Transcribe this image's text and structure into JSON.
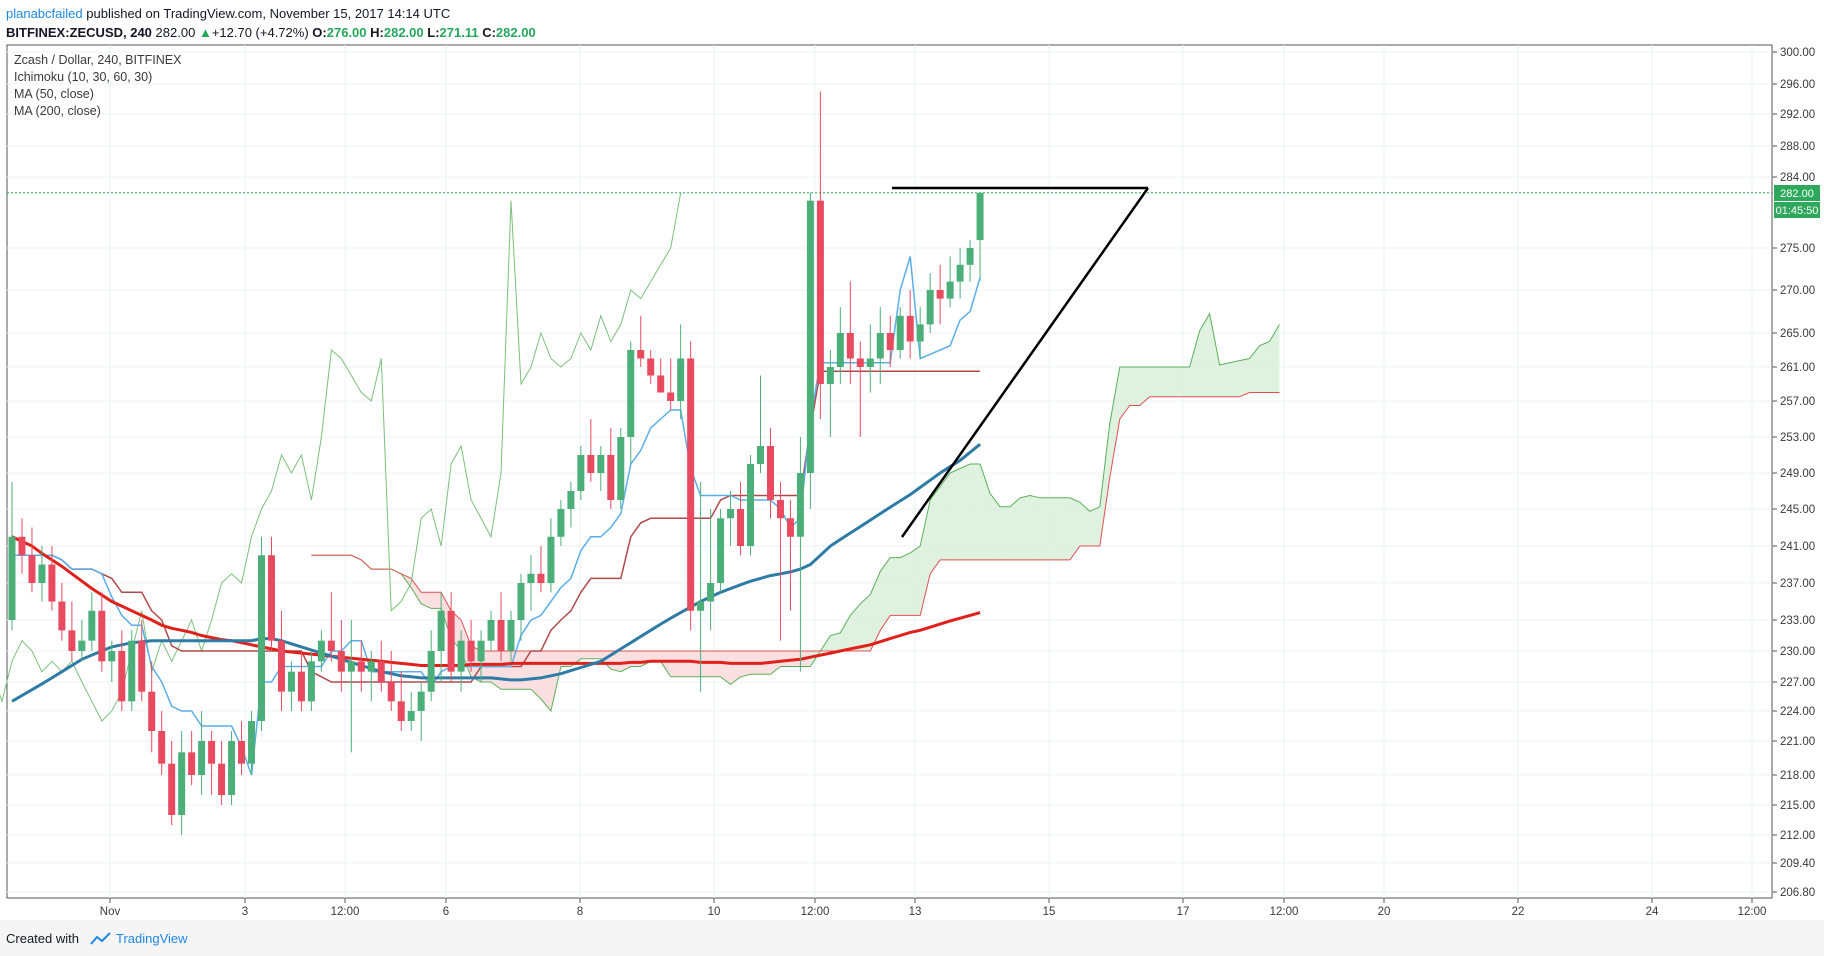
{
  "header": {
    "author": "planabcfailed",
    "published_text": "published on TradingView.com, November 15, 2017 14:14 UTC",
    "symbol_line": "BITFINEX:ZECUSD, 240",
    "last": "282.00",
    "change": "+12.70 (+4.72%)",
    "o_label": "O:",
    "o": "276.00",
    "h_label": "H:",
    "h": "282.00",
    "l_label": "L:",
    "l": "271.11",
    "c_label": "C:",
    "c": "282.00"
  },
  "legend": {
    "title": "Zcash / Dollar, 240, BITFINEX",
    "ichimoku": "Ichimoku (10, 30, 60, 30)",
    "ma50": "MA (50, close)",
    "ma200": "MA (200, close)"
  },
  "price_tag": {
    "price": "282.00",
    "countdown": "01:45:50"
  },
  "footer": {
    "created_with": "Created with",
    "brand": "TradingView"
  },
  "colors": {
    "up": "#4caf7a",
    "down": "#e84a5f",
    "ma50": "#2e7ba6",
    "ma200": "#e0201b",
    "tenkan": "#5aaee8",
    "kijun": "#b04a4a",
    "chikou": "#7cc07c",
    "cloud_bull": "#d9efd9",
    "cloud_bear": "#fbd9dc"
  },
  "chart_data": {
    "type": "candlestick",
    "title": "Zcash / Dollar, 240, BITFINEX",
    "x_tick_labels": [
      "Nov",
      "3",
      "12:00",
      "6",
      "8",
      "10",
      "12:00",
      "13",
      "15",
      "17",
      "12:00",
      "20",
      "22",
      "24",
      "12:00"
    ],
    "y_tick_labels": [
      "300.00",
      "296.00",
      "292.00",
      "288.00",
      "284.00",
      "275.00",
      "270.00",
      "265.00",
      "261.00",
      "257.00",
      "253.00",
      "249.00",
      "245.00",
      "241.00",
      "237.00",
      "233.00",
      "230.00",
      "227.00",
      "224.00",
      "221.00",
      "218.00",
      "215.00",
      "212.00",
      "209.40",
      "206.80"
    ],
    "last_price": 282.0,
    "candles": [
      {
        "o": 233,
        "h": 248,
        "l": 232,
        "c": 242
      },
      {
        "o": 242,
        "h": 244,
        "l": 238,
        "c": 240
      },
      {
        "o": 240,
        "h": 243,
        "l": 236,
        "c": 237
      },
      {
        "o": 237,
        "h": 241,
        "l": 235,
        "c": 239
      },
      {
        "o": 239,
        "h": 241,
        "l": 234,
        "c": 235
      },
      {
        "o": 235,
        "h": 237,
        "l": 231,
        "c": 232
      },
      {
        "o": 232,
        "h": 235,
        "l": 229,
        "c": 230
      },
      {
        "o": 230,
        "h": 233,
        "l": 229,
        "c": 231
      },
      {
        "o": 231,
        "h": 236,
        "l": 230,
        "c": 234
      },
      {
        "o": 234,
        "h": 236,
        "l": 228,
        "c": 229
      },
      {
        "o": 229,
        "h": 231,
        "l": 227,
        "c": 230
      },
      {
        "o": 230,
        "h": 232,
        "l": 224,
        "c": 225
      },
      {
        "o": 225,
        "h": 232,
        "l": 224,
        "c": 231
      },
      {
        "o": 231,
        "h": 233,
        "l": 225,
        "c": 226
      },
      {
        "o": 226,
        "h": 229,
        "l": 220,
        "c": 222
      },
      {
        "o": 222,
        "h": 224,
        "l": 218,
        "c": 219
      },
      {
        "o": 219,
        "h": 221,
        "l": 213,
        "c": 214
      },
      {
        "o": 214,
        "h": 222,
        "l": 212,
        "c": 220
      },
      {
        "o": 220,
        "h": 222,
        "l": 217,
        "c": 218
      },
      {
        "o": 218,
        "h": 224,
        "l": 216,
        "c": 221
      },
      {
        "o": 221,
        "h": 222,
        "l": 216,
        "c": 219
      },
      {
        "o": 219,
        "h": 221,
        "l": 215,
        "c": 216
      },
      {
        "o": 216,
        "h": 222,
        "l": 215,
        "c": 221
      },
      {
        "o": 221,
        "h": 223,
        "l": 218,
        "c": 219
      },
      {
        "o": 219,
        "h": 224,
        "l": 218,
        "c": 223
      },
      {
        "o": 223,
        "h": 242,
        "l": 222,
        "c": 240
      },
      {
        "o": 240,
        "h": 242,
        "l": 230,
        "c": 231
      },
      {
        "o": 231,
        "h": 234,
        "l": 224,
        "c": 226
      },
      {
        "o": 226,
        "h": 229,
        "l": 224,
        "c": 228
      },
      {
        "o": 228,
        "h": 230,
        "l": 224,
        "c": 225
      },
      {
        "o": 225,
        "h": 230,
        "l": 224,
        "c": 229
      },
      {
        "o": 229,
        "h": 232,
        "l": 228,
        "c": 231
      },
      {
        "o": 231,
        "h": 236,
        "l": 229,
        "c": 230
      },
      {
        "o": 230,
        "h": 233,
        "l": 226,
        "c": 228
      },
      {
        "o": 228,
        "h": 233,
        "l": 220,
        "c": 229
      },
      {
        "o": 229,
        "h": 231,
        "l": 226,
        "c": 228
      },
      {
        "o": 228,
        "h": 230,
        "l": 225,
        "c": 229
      },
      {
        "o": 229,
        "h": 231,
        "l": 226,
        "c": 227
      },
      {
        "o": 227,
        "h": 230,
        "l": 224,
        "c": 225
      },
      {
        "o": 225,
        "h": 228,
        "l": 222,
        "c": 223
      },
      {
        "o": 223,
        "h": 226,
        "l": 222,
        "c": 224
      },
      {
        "o": 224,
        "h": 227,
        "l": 221,
        "c": 226
      },
      {
        "o": 226,
        "h": 232,
        "l": 225,
        "c": 230
      },
      {
        "o": 230,
        "h": 236,
        "l": 227,
        "c": 234
      },
      {
        "o": 234,
        "h": 236,
        "l": 227,
        "c": 228
      },
      {
        "o": 228,
        "h": 232,
        "l": 226,
        "c": 231
      },
      {
        "o": 231,
        "h": 233,
        "l": 228,
        "c": 229
      },
      {
        "o": 229,
        "h": 232,
        "l": 227,
        "c": 231
      },
      {
        "o": 231,
        "h": 234,
        "l": 230,
        "c": 233
      },
      {
        "o": 233,
        "h": 236,
        "l": 229,
        "c": 230
      },
      {
        "o": 230,
        "h": 234,
        "l": 229,
        "c": 233
      },
      {
        "o": 233,
        "h": 238,
        "l": 231,
        "c": 237
      },
      {
        "o": 237,
        "h": 240,
        "l": 234,
        "c": 238
      },
      {
        "o": 238,
        "h": 241,
        "l": 236,
        "c": 237
      },
      {
        "o": 237,
        "h": 244,
        "l": 236,
        "c": 242
      },
      {
        "o": 242,
        "h": 246,
        "l": 241,
        "c": 245
      },
      {
        "o": 245,
        "h": 248,
        "l": 243,
        "c": 247
      },
      {
        "o": 247,
        "h": 252,
        "l": 246,
        "c": 251
      },
      {
        "o": 251,
        "h": 255,
        "l": 248,
        "c": 249
      },
      {
        "o": 249,
        "h": 252,
        "l": 247,
        "c": 251
      },
      {
        "o": 251,
        "h": 254,
        "l": 245,
        "c": 246
      },
      {
        "o": 246,
        "h": 254,
        "l": 245,
        "c": 253
      },
      {
        "o": 253,
        "h": 264,
        "l": 250,
        "c": 263
      },
      {
        "o": 263,
        "h": 267,
        "l": 261,
        "c": 262
      },
      {
        "o": 262,
        "h": 263,
        "l": 259,
        "c": 260
      },
      {
        "o": 260,
        "h": 262,
        "l": 258,
        "c": 258
      },
      {
        "o": 258,
        "h": 262,
        "l": 256,
        "c": 257
      },
      {
        "o": 257,
        "h": 266,
        "l": 255,
        "c": 262
      },
      {
        "o": 262,
        "h": 264,
        "l": 232,
        "c": 234
      },
      {
        "o": 234,
        "h": 248,
        "l": 226,
        "c": 235
      },
      {
        "o": 235,
        "h": 245,
        "l": 232,
        "c": 237
      },
      {
        "o": 237,
        "h": 245,
        "l": 236,
        "c": 244
      },
      {
        "o": 244,
        "h": 247,
        "l": 241,
        "c": 245
      },
      {
        "o": 245,
        "h": 248,
        "l": 240,
        "c": 241
      },
      {
        "o": 241,
        "h": 251,
        "l": 240,
        "c": 250
      },
      {
        "o": 250,
        "h": 260,
        "l": 249,
        "c": 252
      },
      {
        "o": 252,
        "h": 254,
        "l": 244,
        "c": 246
      },
      {
        "o": 246,
        "h": 248,
        "l": 231,
        "c": 244
      },
      {
        "o": 244,
        "h": 246,
        "l": 234,
        "c": 242
      },
      {
        "o": 242,
        "h": 253,
        "l": 228,
        "c": 249
      },
      {
        "o": 249,
        "h": 282,
        "l": 245,
        "c": 281
      },
      {
        "o": 281,
        "h": 295,
        "l": 255,
        "c": 259
      },
      {
        "o": 259,
        "h": 263,
        "l": 253,
        "c": 261
      },
      {
        "o": 261,
        "h": 268,
        "l": 259,
        "c": 265
      },
      {
        "o": 265,
        "h": 271,
        "l": 259,
        "c": 262
      },
      {
        "o": 262,
        "h": 264,
        "l": 253,
        "c": 261
      },
      {
        "o": 261,
        "h": 266,
        "l": 258,
        "c": 262
      },
      {
        "o": 262,
        "h": 268,
        "l": 259,
        "c": 265
      },
      {
        "o": 265,
        "h": 267,
        "l": 261,
        "c": 263
      },
      {
        "o": 263,
        "h": 268,
        "l": 262,
        "c": 267
      },
      {
        "o": 267,
        "h": 270,
        "l": 262,
        "c": 264
      },
      {
        "o": 264,
        "h": 268,
        "l": 262,
        "c": 266
      },
      {
        "o": 266,
        "h": 272,
        "l": 265,
        "c": 270
      },
      {
        "o": 270,
        "h": 273,
        "l": 266,
        "c": 269
      },
      {
        "o": 269,
        "h": 274,
        "l": 268,
        "c": 271
      },
      {
        "o": 271,
        "h": 275,
        "l": 269,
        "c": 273
      },
      {
        "o": 273,
        "h": 276,
        "l": 271,
        "c": 275
      },
      {
        "o": 276,
        "h": 282,
        "l": 271.11,
        "c": 282
      }
    ],
    "ma200": [
      242,
      241.5,
      241,
      240.2,
      239.5,
      238.8,
      238,
      237.2,
      236.4,
      235.7,
      235,
      234.5,
      234,
      233.5,
      233,
      232.5,
      232.2,
      232,
      231.8,
      231.5,
      231.3,
      231.1,
      231,
      230.8,
      230.6,
      230.4,
      230.2,
      230,
      229.9,
      229.8,
      229.7,
      229.6,
      229.5,
      229.4,
      229.3,
      229.2,
      229.1,
      229,
      228.9,
      228.8,
      228.7,
      228.6,
      228.6,
      228.6,
      228.6,
      228.6,
      228.7,
      228.7,
      228.7,
      228.7,
      228.8,
      228.8,
      228.8,
      228.8,
      228.8,
      228.8,
      228.8,
      228.8,
      228.8,
      228.8,
      228.8,
      228.8,
      228.9,
      228.9,
      229,
      229,
      229,
      229,
      229,
      228.9,
      228.9,
      228.9,
      228.8,
      228.8,
      228.8,
      228.8,
      228.9,
      229,
      229.1,
      229.2,
      229.4,
      229.6,
      229.8,
      230,
      230.2,
      230.4,
      230.6,
      230.9,
      231.2,
      231.5,
      231.8,
      232,
      232.3,
      232.6,
      232.9,
      233.2,
      233.5,
      233.8
    ],
    "ma50": [
      225,
      225.6,
      226.2,
      226.8,
      227.4,
      228,
      228.6,
      229.2,
      229.6,
      230,
      230.4,
      230.6,
      230.8,
      230.9,
      231,
      231,
      231,
      231,
      231,
      231,
      231,
      231,
      231,
      231,
      231,
      231.2,
      231.2,
      231,
      230.7,
      230.4,
      230.1,
      229.8,
      229.5,
      229.2,
      228.9,
      228.6,
      228.3,
      228,
      227.8,
      227.6,
      227.5,
      227.4,
      227.4,
      227.4,
      227.4,
      227.4,
      227.4,
      227.4,
      227.4,
      227.3,
      227.2,
      227.2,
      227.3,
      227.4,
      227.6,
      227.8,
      228.1,
      228.4,
      228.7,
      229,
      229.6,
      230.2,
      230.8,
      231.4,
      232,
      232.6,
      233.2,
      233.8,
      234.4,
      235,
      235.5,
      236,
      236.4,
      236.8,
      237.2,
      237.5,
      237.8,
      238,
      238.2,
      238.5,
      239,
      240,
      241,
      241.7,
      242.4,
      243.1,
      243.8,
      244.5,
      245.2,
      245.9,
      246.6,
      247.4,
      248.2,
      249,
      249.7,
      250.4,
      251.3,
      252.2
    ]
  }
}
